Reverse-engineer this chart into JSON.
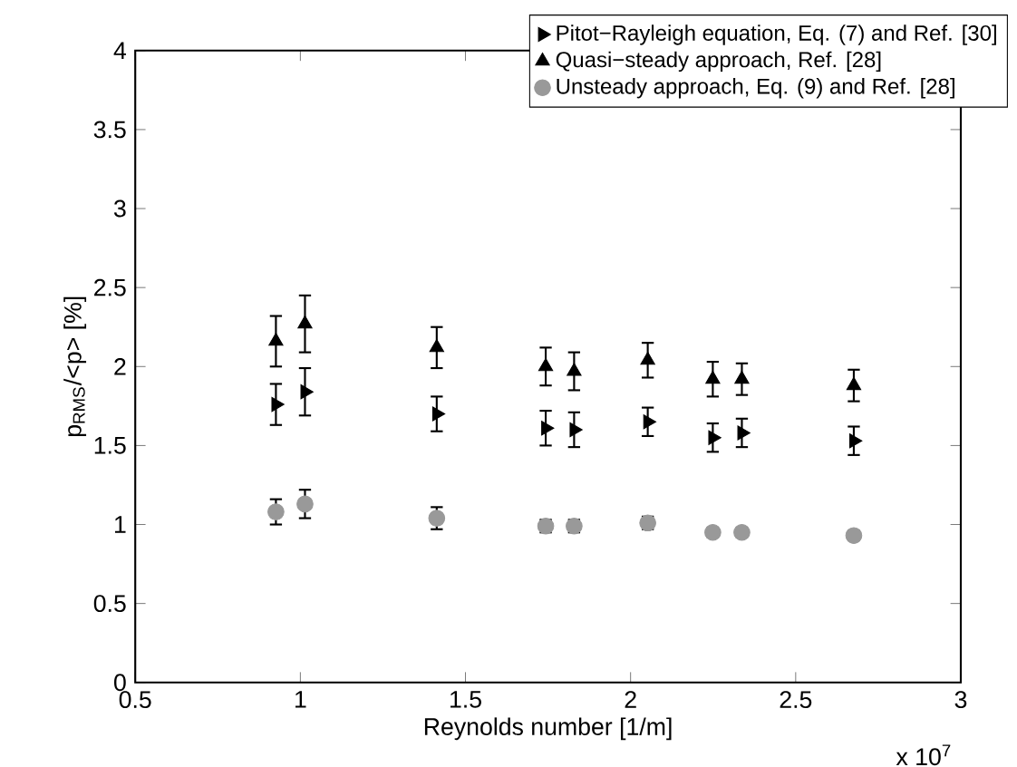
{
  "chart_data": {
    "type": "scatter",
    "xlabel": "Reynolds number [1/m]",
    "ylabel": "p$_{RMS}$/<p> [%]",
    "annotations": [
      "x 10$^{7}$"
    ],
    "xlim": [
      0.5,
      3
    ],
    "ylim": [
      0,
      4
    ],
    "xticks": [
      0.5,
      1,
      1.5,
      2,
      2.5,
      3
    ],
    "yticks": [
      0,
      0.5,
      1,
      1.5,
      2,
      2.5,
      3,
      3.5,
      4
    ],
    "x": [
      0.926,
      1.014,
      1.413,
      1.743,
      1.829,
      2.052,
      2.249,
      2.337,
      2.676
    ],
    "series": [
      {
        "name": "Pitot−Rayleigh equation, Eq. (7) and Ref. [30]",
        "color": "#000000",
        "marker": "triangle-right",
        "values": [
          1.76,
          1.84,
          1.7,
          1.61,
          1.6,
          1.65,
          1.55,
          1.58,
          1.53
        ],
        "errors": [
          0.13,
          0.15,
          0.11,
          0.11,
          0.11,
          0.09,
          0.09,
          0.09,
          0.09
        ]
      },
      {
        "name": "Quasi−steady approach, Ref. [28]",
        "color": "#000000",
        "marker": "triangle",
        "values": [
          2.16,
          2.27,
          2.12,
          2.0,
          1.97,
          2.04,
          1.92,
          1.92,
          1.88
        ],
        "errors": [
          0.16,
          0.18,
          0.13,
          0.12,
          0.12,
          0.11,
          0.11,
          0.1,
          0.1
        ]
      },
      {
        "name": "Unsteady approach, Eq. (9) and Ref. [28]",
        "color": "#999999",
        "marker": "circle",
        "values": [
          1.08,
          1.13,
          1.04,
          0.99,
          0.99,
          1.01,
          0.95,
          0.95,
          0.93
        ],
        "errors": [
          0.08,
          0.09,
          0.07,
          0.04,
          0.04,
          0.04,
          0.03,
          0.03,
          0.03
        ]
      }
    ],
    "grid": false,
    "legend": "top right"
  }
}
